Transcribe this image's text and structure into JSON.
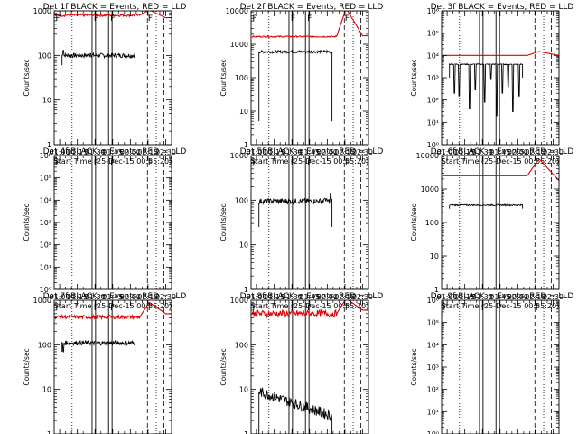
{
  "figure": {
    "xlabel_prefix": "Start Time",
    "start_time": "(25-Dec-15 00:55:20)",
    "ylabel": "Counts/sec",
    "x_ticks": [
      "01:00",
      "01:15",
      "01:30",
      "01:45",
      "02:00",
      "02:15",
      "02:30"
    ],
    "x_tick_minutes": [
      60,
      75,
      90,
      105,
      120,
      135,
      150
    ],
    "xlim_minutes": [
      55.33,
      155
    ],
    "colors": {
      "events": "#000000",
      "lld": "#e00000",
      "axes": "#000000"
    }
  },
  "chart_data": [
    {
      "type": "line",
      "title": "Det 1f BLACK = Events, RED = LLD",
      "yscale": "log",
      "ylim": [
        1,
        1000
      ],
      "y_ticks": [
        "1",
        "10",
        "100",
        "1000"
      ],
      "y_tick_values": [
        1,
        10,
        100,
        1000
      ],
      "events": {
        "start": 62,
        "end": 124,
        "level": 100,
        "noise": 0.05,
        "drop_end": 124,
        "base": 60,
        "spikes": [
          [
            63,
            130
          ],
          [
            86,
            110
          ]
        ]
      },
      "lld": {
        "start": 56,
        "end": 155,
        "level": 800,
        "noise": 0.03,
        "bump": [
          136,
          1050
        ],
        "tail": [
          150,
          700
        ]
      },
      "markers": {
        "dotted": [
          70.5,
          142
        ],
        "solid": [
          87.5,
          90.5,
          101.5,
          104.5
        ],
        "dashed": [
          134.5,
          148.5
        ],
        "letters": [
          [
            "F",
            56.5
          ],
          [
            "F",
            89
          ],
          [
            "F",
            103
          ],
          [
            "F",
            135
          ]
        ]
      }
    },
    {
      "type": "line",
      "title": "Det 2f BLACK = Events, RED = LLD",
      "yscale": "log",
      "ylim": [
        1,
        10000
      ],
      "y_ticks": [
        "1",
        "10",
        "100",
        "1000",
        "10000"
      ],
      "y_tick_values": [
        1,
        10,
        100,
        1000,
        10000
      ],
      "events": {
        "start": 62,
        "end": 124,
        "level": 600,
        "noise": 0.04,
        "drop_end": 124,
        "base": 5,
        "spikes": []
      },
      "lld": {
        "start": 56,
        "end": 155,
        "level": 1700,
        "noise": 0.02,
        "bump": [
          136,
          12000
        ],
        "tail": [
          150,
          1800
        ]
      },
      "markers": {
        "dotted": [
          70.5,
          142
        ],
        "solid": [
          87.5,
          90.5,
          101.5,
          104.5
        ],
        "dashed": [
          134.5,
          148.5
        ],
        "letters": [
          [
            "F",
            56.5
          ],
          [
            "F",
            89
          ],
          [
            "F",
            103
          ],
          [
            "F",
            135
          ]
        ]
      }
    },
    {
      "type": "line",
      "title": "Det 3f BLACK = Events, RED = LLD",
      "yscale": "log",
      "ylim": [
        1,
        1000000
      ],
      "y_ticks": [
        "10⁰",
        "10¹",
        "10²",
        "10³",
        "10⁴",
        "10⁵",
        "10⁶"
      ],
      "y_tick_values": [
        1,
        10,
        100,
        1000,
        10000,
        100000,
        1000000
      ],
      "events": {
        "start": 62,
        "end": 124,
        "level": 4000,
        "noise": 0.02,
        "drop_end": 124,
        "base": 1000,
        "dips": [
          [
            66,
            200
          ],
          [
            70,
            150
          ],
          [
            79,
            40
          ],
          [
            84,
            300
          ],
          [
            92,
            80
          ],
          [
            97,
            900
          ],
          [
            102,
            20
          ],
          [
            107,
            200
          ],
          [
            112,
            400
          ],
          [
            116,
            30
          ],
          [
            121,
            150
          ]
        ]
      },
      "lld": {
        "start": 56,
        "end": 155,
        "level": 10000,
        "noise": 0.0,
        "bump": [
          138,
          15000
        ],
        "tail": [
          155,
          10000
        ]
      },
      "markers": {
        "dotted": [
          70.5,
          142
        ],
        "solid": [
          87.5,
          90.5,
          101.5,
          104.5
        ],
        "dashed": [
          134.5,
          148.5
        ],
        "letters": []
      }
    },
    {
      "type": "line",
      "title": "Det 4f BLACK = Events, RED = LLD",
      "yscale": "log",
      "ylim": [
        1,
        1000000
      ],
      "y_ticks": [
        "10⁰",
        "10¹",
        "10²",
        "10³",
        "10⁴",
        "10⁵",
        "10⁶"
      ],
      "y_tick_values": [
        1,
        10,
        100,
        1000,
        10000,
        100000,
        1000000
      ],
      "events": null,
      "lld": null,
      "markers": {
        "dotted": [
          70.5,
          142
        ],
        "solid": [
          87.5,
          90.5,
          101.5,
          104.5
        ],
        "dashed": [
          134.5,
          148.5
        ],
        "letters": [
          [
            "F",
            56.5
          ],
          [
            "F",
            89
          ],
          [
            "F",
            103
          ],
          [
            "F",
            135
          ]
        ]
      }
    },
    {
      "type": "line",
      "title": "Det 5f BLACK = Events, RED = LLD",
      "yscale": "log",
      "ylim": [
        1,
        1000
      ],
      "y_ticks": [
        "1",
        "10",
        "100",
        "1000"
      ],
      "y_tick_values": [
        1,
        10,
        100,
        1000
      ],
      "events": {
        "start": 62,
        "end": 124,
        "level": 95,
        "noise": 0.06,
        "drop_end": 124,
        "base": 25,
        "spikes": [
          [
            118,
            110
          ],
          [
            123,
            140
          ]
        ]
      },
      "lld": null,
      "markers": {
        "dotted": [
          70.5,
          142
        ],
        "solid": [
          87.5,
          90.5,
          101.5,
          104.5
        ],
        "dashed": [
          134.5,
          148.5
        ],
        "letters": [
          [
            "F",
            56.5
          ],
          [
            "F",
            89
          ],
          [
            "F",
            103
          ],
          [
            "F",
            135
          ]
        ]
      }
    },
    {
      "type": "line",
      "title": "Det 6f BLACK = Events, RED = LLD",
      "yscale": "log",
      "ylim": [
        1,
        10000
      ],
      "y_ticks": [
        "1",
        "10",
        "100",
        "1000",
        "10000"
      ],
      "y_tick_values": [
        1,
        10,
        100,
        1000,
        10000
      ],
      "events": {
        "start": 62,
        "end": 124,
        "level": 330,
        "noise": 0.02,
        "drop_end": 124,
        "base": 260,
        "spikes": []
      },
      "lld": {
        "start": 56,
        "end": 155,
        "level": 2500,
        "noise": 0.0,
        "bump": [
          138,
          8000
        ],
        "tail": [
          155,
          1800
        ]
      },
      "markers": {
        "dotted": [
          70.5,
          142
        ],
        "solid": [
          87.5,
          90.5,
          101.5,
          104.5
        ],
        "dashed": [
          134.5,
          148.5
        ],
        "letters": []
      }
    },
    {
      "type": "line",
      "title": "Det 7f BLACK = Events, RED = LLD",
      "yscale": "log",
      "ylim": [
        1,
        1000
      ],
      "y_ticks": [
        "1",
        "10",
        "100",
        "1000"
      ],
      "y_tick_values": [
        1,
        10,
        100,
        1000
      ],
      "events": {
        "start": 62,
        "end": 124,
        "level": 110,
        "noise": 0.05,
        "drop_end": 124,
        "base": 70,
        "spikes": [
          [
            63,
            70
          ]
        ]
      },
      "lld": {
        "start": 56,
        "end": 155,
        "level": 420,
        "noise": 0.04,
        "bump": [
          136,
          900
        ],
        "tail": [
          150,
          500
        ]
      },
      "markers": {
        "dotted": [
          70.5,
          142
        ],
        "solid": [
          87.5,
          90.5,
          101.5,
          104.5
        ],
        "dashed": [
          134.5,
          148.5
        ],
        "letters": [
          [
            "F",
            56.5
          ],
          [
            "F",
            89
          ],
          [
            "F",
            103
          ],
          [
            "F",
            135
          ]
        ]
      }
    },
    {
      "type": "line",
      "title": "Det 8f BLACK = Events, RED = LLD",
      "yscale": "log",
      "ylim": [
        1,
        1000
      ],
      "y_ticks": [
        "1",
        "10",
        "100",
        "1000"
      ],
      "y_tick_values": [
        1,
        10,
        100,
        1000
      ],
      "events": {
        "start": 62,
        "end": 124,
        "level": 9,
        "noise": 0.12,
        "drop_end": 124,
        "base": 1,
        "trend": -0.55,
        "spikes": []
      },
      "lld": {
        "start": 56,
        "end": 155,
        "level": 500,
        "noise": 0.08,
        "bump": [
          136,
          1100
        ],
        "tail": [
          150,
          600
        ]
      },
      "markers": {
        "dotted": [
          70.5,
          142
        ],
        "solid": [
          87.5,
          90.5,
          101.5,
          104.5
        ],
        "dashed": [
          134.5,
          148.5
        ],
        "letters": [
          [
            "F",
            56.5
          ],
          [
            "F",
            89
          ],
          [
            "F",
            103
          ],
          [
            "F",
            135
          ]
        ]
      }
    },
    {
      "type": "line",
      "title": "Det 9f BLACK = Events, RED = LLD",
      "yscale": "log",
      "ylim": [
        1,
        1000000
      ],
      "y_ticks": [
        "10⁰",
        "10¹",
        "10²",
        "10³",
        "10⁴",
        "10⁵",
        "10⁶"
      ],
      "y_tick_values": [
        1,
        10,
        100,
        1000,
        10000,
        100000,
        1000000
      ],
      "events": null,
      "lld": null,
      "markers": {
        "dotted": [
          70.5,
          142
        ],
        "solid": [
          87.5,
          90.5,
          101.5,
          104.5
        ],
        "dashed": [
          134.5,
          148.5
        ],
        "letters": [
          [
            "F",
            56.5
          ],
          [
            "F",
            89
          ],
          [
            "F",
            103
          ],
          [
            "F",
            135
          ]
        ]
      }
    }
  ]
}
